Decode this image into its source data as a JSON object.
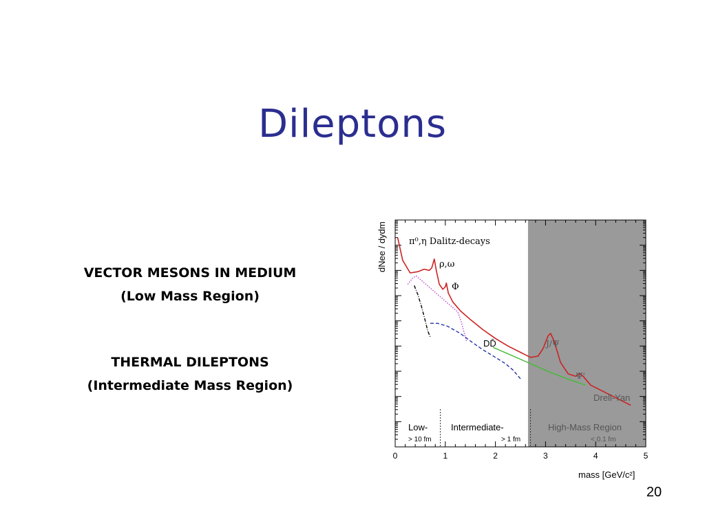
{
  "slide": {
    "title": "Dileptons",
    "bullet1_line1": "VECTOR MESONS IN MEDIUM",
    "bullet1_line2": "(Low Mass Region)",
    "bullet2_line1": "THERMAL DILEPTONS",
    "bullet2_line2": "(Intermediate Mass Region)",
    "page_number": "20"
  },
  "chart_data": {
    "type": "line",
    "title": "",
    "xlabel": "mass [GeV/c²]",
    "ylabel": "dNee / dydm",
    "xlim": [
      0,
      5
    ],
    "x_ticks": [
      "0",
      "1",
      "2",
      "3",
      "4",
      "5"
    ],
    "y_scale": "log",
    "y_ticks_labeled": false,
    "shaded_region": {
      "x_from": 2.65,
      "x_to": 5,
      "color": "#9a9a9a"
    },
    "region_dividers_x": [
      0.9,
      2.7
    ],
    "annotations": {
      "dalitz": "π⁰,η Dalitz-decays",
      "rho_omega": "ρ,ω",
      "phi": "Φ",
      "dd": "DD̄",
      "jpsi": "J/Ψ",
      "psiprime": "Ψ'",
      "drell_yan": "Drell-Yan"
    },
    "regions": [
      {
        "name": "Low-",
        "scale": "> 10 fm"
      },
      {
        "name": "Intermediate-",
        "scale": "> 1 fm"
      },
      {
        "name": "High-Mass Region",
        "scale": "< 0.1 fm"
      }
    ],
    "series": [
      {
        "id": "total",
        "color": "#cc2222",
        "style": "solid",
        "points": [
          [
            0.05,
            8.3
          ],
          [
            0.15,
            7.4
          ],
          [
            0.3,
            6.9
          ],
          [
            0.45,
            6.95
          ],
          [
            0.58,
            7.05
          ],
          [
            0.68,
            7.0
          ],
          [
            0.73,
            7.1
          ],
          [
            0.78,
            7.45
          ],
          [
            0.82,
            7.0
          ],
          [
            0.88,
            6.45
          ],
          [
            0.95,
            6.25
          ],
          [
            1.0,
            6.35
          ],
          [
            1.02,
            6.5
          ],
          [
            1.06,
            6.1
          ],
          [
            1.15,
            5.75
          ],
          [
            1.3,
            5.4
          ],
          [
            1.5,
            5.05
          ],
          [
            1.75,
            4.65
          ],
          [
            2.0,
            4.3
          ],
          [
            2.25,
            4.0
          ],
          [
            2.5,
            3.75
          ],
          [
            2.7,
            3.55
          ],
          [
            2.85,
            3.6
          ],
          [
            2.95,
            3.9
          ],
          [
            3.05,
            4.4
          ],
          [
            3.1,
            4.5
          ],
          [
            3.17,
            4.2
          ],
          [
            3.3,
            3.35
          ],
          [
            3.45,
            2.9
          ],
          [
            3.6,
            2.8
          ],
          [
            3.68,
            2.9
          ],
          [
            3.75,
            2.8
          ],
          [
            3.9,
            2.45
          ],
          [
            4.2,
            2.15
          ],
          [
            4.5,
            1.85
          ],
          [
            4.7,
            1.65
          ]
        ]
      },
      {
        "id": "dalitz",
        "color": "#000000",
        "style": "dashdot",
        "points": [
          [
            0.38,
            6.4
          ],
          [
            0.45,
            6.05
          ],
          [
            0.52,
            5.6
          ],
          [
            0.6,
            5.0
          ],
          [
            0.65,
            4.6
          ],
          [
            0.7,
            4.35
          ]
        ]
      },
      {
        "id": "rho_omega",
        "color": "#bb44cc",
        "style": "dotted",
        "points": [
          [
            0.25,
            6.45
          ],
          [
            0.35,
            6.7
          ],
          [
            0.42,
            6.78
          ],
          [
            1.25,
            5.35
          ],
          [
            1.32,
            4.95
          ],
          [
            1.42,
            4.2
          ]
        ]
      },
      {
        "id": "dd",
        "color": "#2233aa",
        "style": "dashed",
        "points": [
          [
            0.7,
            4.9
          ],
          [
            0.85,
            4.9
          ],
          [
            1.05,
            4.78
          ],
          [
            1.3,
            4.5
          ],
          [
            1.5,
            4.2
          ],
          [
            1.75,
            3.85
          ],
          [
            2.0,
            3.55
          ],
          [
            2.2,
            3.3
          ],
          [
            2.35,
            3.05
          ],
          [
            2.5,
            2.7
          ]
        ]
      },
      {
        "id": "drell_yan",
        "color": "#44bb33",
        "style": "solid",
        "points": [
          [
            1.95,
            3.95
          ],
          [
            2.3,
            3.65
          ],
          [
            2.7,
            3.3
          ],
          [
            3.1,
            2.95
          ],
          [
            3.5,
            2.65
          ],
          [
            3.8,
            2.45
          ]
        ]
      }
    ]
  }
}
